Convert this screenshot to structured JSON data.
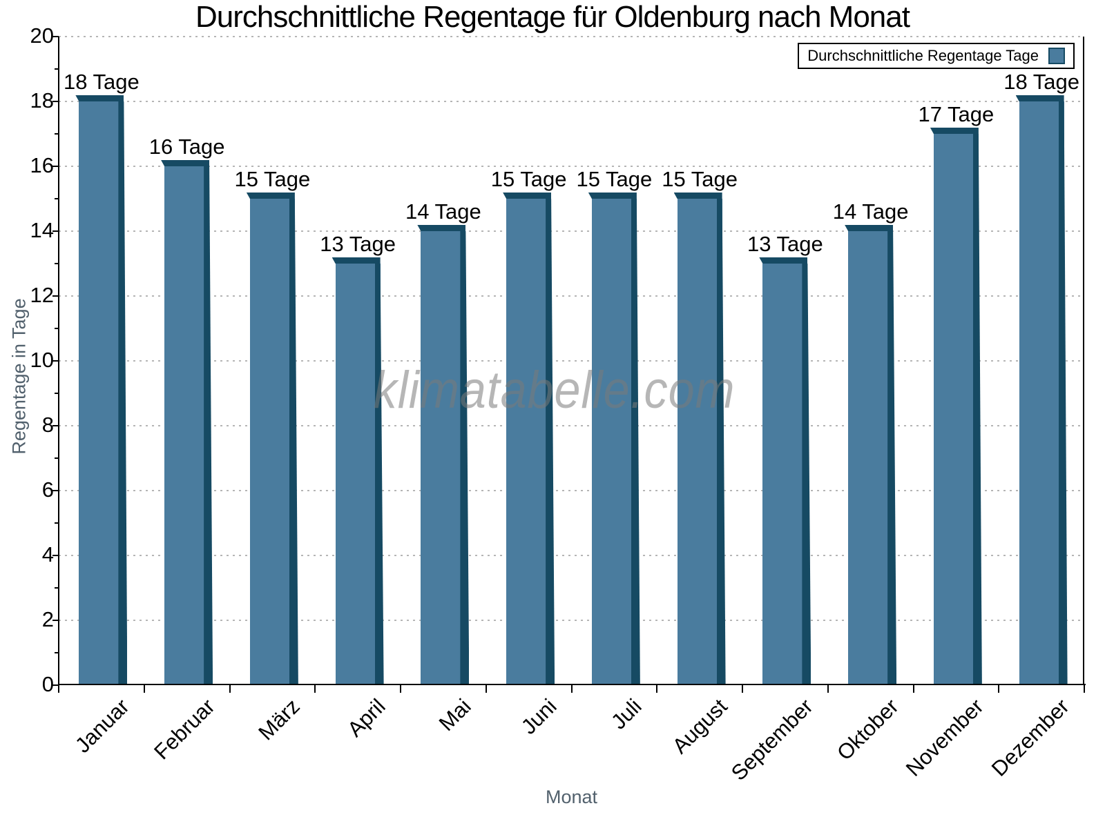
{
  "title": "Durchschnittliche Regentage für Oldenburg nach Monat",
  "watermark": "klimatabelle.com",
  "legend": {
    "label": "Durchschnittliche Regentage Tage"
  },
  "axes": {
    "x_label": "Monat",
    "y_label": "Regentage in Tage",
    "y_tick_labels": [
      "0",
      "2",
      "4",
      "6",
      "8",
      "10",
      "12",
      "14",
      "16",
      "18",
      "20"
    ]
  },
  "chart_data": {
    "type": "bar",
    "title": "Durchschnittliche Regentage für Oldenburg nach Monat",
    "xlabel": "Monat",
    "ylabel": "Regentage in Tage",
    "categories": [
      "Januar",
      "Februar",
      "März",
      "April",
      "Mai",
      "Juni",
      "Juli",
      "August",
      "September",
      "Oktober",
      "November",
      "Dezember"
    ],
    "values": [
      18,
      16,
      15,
      13,
      14,
      15,
      15,
      15,
      13,
      14,
      17,
      18
    ],
    "data_labels": [
      "18 Tage",
      "16 Tage",
      "15 Tage",
      "13 Tage",
      "14 Tage",
      "15 Tage",
      "15 Tage",
      "15 Tage",
      "13 Tage",
      "14 Tage",
      "17 Tage",
      "18 Tage"
    ],
    "unit": "Tage",
    "ylim": [
      0,
      20
    ],
    "ytick_step": 2,
    "legend_entries": [
      "Durchschnittliche Regentage Tage"
    ],
    "legend_position": "top-right",
    "grid": "horizontal-dotted"
  },
  "colors": {
    "bar_face": "#4A7C9E",
    "bar_edge": "#164A63",
    "grid": "#b5b5b5",
    "axis": "#000000",
    "axis_title": "#52616d",
    "watermark_gray": "#7a7a7a"
  }
}
